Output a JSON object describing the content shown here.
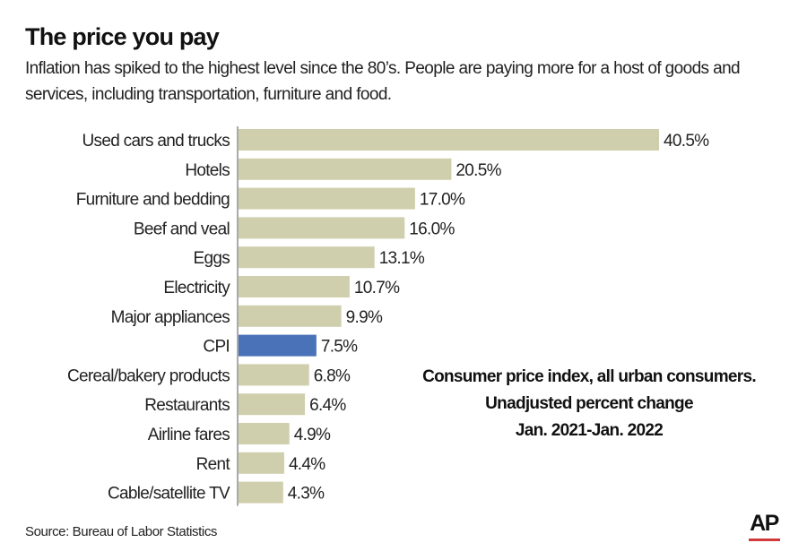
{
  "title": "The price you pay",
  "subtitle": "Inflation has spiked to the highest level since the 80’s. People are paying more for a host of goods and services, including transportation, furniture and food.",
  "note": [
    "Consumer price index, all urban consumers.",
    "Unadjusted percent change",
    "Jan. 2021-Jan. 2022"
  ],
  "source": "Source: Bureau of Labor Statistics",
  "logo": "AP",
  "colors": {
    "bar": "#d0cfad",
    "highlight": "#4a72b8",
    "logo_bar": "#d03a3a"
  },
  "chart_data": {
    "type": "bar",
    "orientation": "horizontal",
    "categories": [
      "Used cars and trucks",
      "Hotels",
      "Furniture and bedding",
      "Beef and veal",
      "Eggs",
      "Electricity",
      "Major appliances",
      "CPI",
      "Cereal/bakery products",
      "Restaurants",
      "Airline fares",
      "Rent",
      "Cable/satellite TV"
    ],
    "values": [
      40.5,
      20.5,
      17.0,
      16.0,
      13.1,
      10.7,
      9.9,
      7.5,
      6.8,
      6.4,
      4.9,
      4.4,
      4.3
    ],
    "data_labels": [
      "40.5%",
      "20.5%",
      "17.0%",
      "16.0%",
      "13.1%",
      "10.7%",
      "9.9%",
      "7.5%",
      "6.8%",
      "6.4%",
      "4.9%",
      "4.4%",
      "4.3%"
    ],
    "highlight": "CPI",
    "unit": "%",
    "grid": false
  }
}
